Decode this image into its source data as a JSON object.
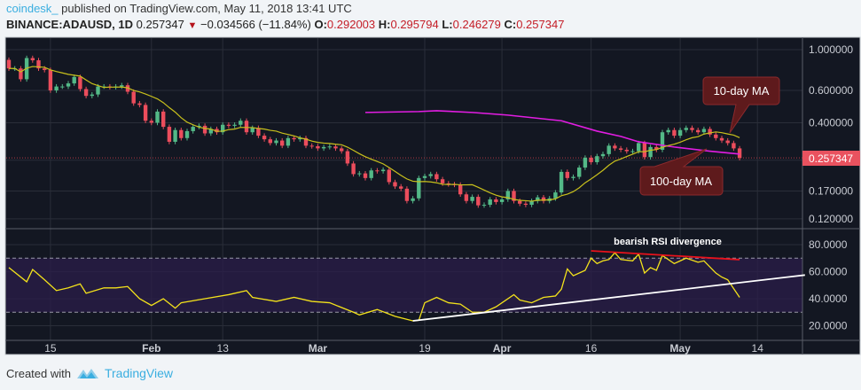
{
  "header": {
    "author": "coindesk_",
    "published": "published on TradingView.com, May 11, 2018 13:41 UTC",
    "symbol": "BINANCE:ADAUSD, 1D",
    "last": "0.257347",
    "change": "−0.034566 (−11.84%)",
    "o_label": "O:",
    "o": "0.292003",
    "h_label": "H:",
    "h": "0.295794",
    "l_label": "L:",
    "l": "0.246279",
    "c_label": "C:",
    "c": "0.257347",
    "direction_icon": "triangle-down-icon"
  },
  "footer": {
    "created_with": "Created with",
    "brand": "TradingView",
    "logo_icon": "tradingview-logo-icon"
  },
  "colors": {
    "up": "#53b987",
    "down": "#eb4d5c",
    "ma10": "#c8c01c",
    "ma100": "#e11de1",
    "rsi": "#f3e21b",
    "background": "#131722",
    "annotation": "#5e1a1c"
  },
  "chart_data": [
    {
      "type": "candlestick",
      "scale": "log",
      "date_range": [
        "2018-01-08",
        "2018-05-11"
      ],
      "first_open": 0.88,
      "closes": [
        0.79,
        0.79,
        0.69,
        0.9,
        0.875,
        0.79,
        0.775,
        0.6,
        0.63,
        0.63,
        0.655,
        0.71,
        0.61,
        0.56,
        0.57,
        0.63,
        0.63,
        0.625,
        0.63,
        0.64,
        0.59,
        0.51,
        0.5,
        0.41,
        0.4,
        0.46,
        0.38,
        0.315,
        0.365,
        0.33,
        0.36,
        0.38,
        0.385,
        0.35,
        0.37,
        0.355,
        0.39,
        0.385,
        0.39,
        0.41,
        0.355,
        0.375,
        0.34,
        0.325,
        0.31,
        0.32,
        0.3,
        0.33,
        0.325,
        0.33,
        0.3,
        0.298,
        0.29,
        0.295,
        0.297,
        0.29,
        0.28,
        0.24,
        0.21,
        0.212,
        0.2,
        0.22,
        0.218,
        0.222,
        0.19,
        0.18,
        0.175,
        0.15,
        0.155,
        0.2,
        0.205,
        0.21,
        0.197,
        0.187,
        0.185,
        0.184,
        0.163,
        0.15,
        0.158,
        0.142,
        0.143,
        0.153,
        0.148,
        0.153,
        0.17,
        0.15,
        0.145,
        0.143,
        0.15,
        0.157,
        0.15,
        0.155,
        0.167,
        0.216,
        0.2,
        0.203,
        0.228,
        0.258,
        0.244,
        0.263,
        0.27,
        0.3,
        0.29,
        0.285,
        0.28,
        0.28,
        0.31,
        0.26,
        0.295,
        0.285,
        0.355,
        0.365,
        0.34,
        0.365,
        0.375,
        0.365,
        0.355,
        0.37,
        0.345,
        0.33,
        0.32,
        0.31,
        0.29,
        0.257347
      ],
      "ma100": [
        [
          "2018-03-09",
          0.455
        ],
        [
          "2018-03-18",
          0.46
        ],
        [
          "2018-03-21",
          0.465
        ],
        [
          "2018-03-27",
          0.455
        ],
        [
          "2018-04-02",
          0.44
        ],
        [
          "2018-04-11",
          0.41
        ],
        [
          "2018-04-17",
          0.36
        ],
        [
          "2018-04-21",
          0.337
        ],
        [
          "2018-04-24",
          0.315
        ],
        [
          "2018-04-30",
          0.295
        ],
        [
          "2018-05-06",
          0.28
        ],
        [
          "2018-05-11",
          0.27
        ]
      ],
      "ma10_period": 10,
      "y_ticks": [
        "1.000000",
        "0.600000",
        "0.400000",
        "0.170000",
        "0.120000"
      ],
      "y_grid": [
        1.0,
        0.6,
        0.4,
        0.25,
        0.17,
        0.12
      ],
      "last_price_label": "0.257347",
      "annotations": [
        {
          "text": "10-day MA",
          "points_to": "ma10"
        },
        {
          "text": "100-day MA",
          "points_to": "ma100"
        }
      ]
    },
    {
      "type": "line",
      "ylim": [
        9,
        92
      ],
      "band": [
        30,
        70
      ],
      "y_ticks": [
        "80.0000",
        "60.0000",
        "40.0000",
        "20.0000"
      ],
      "y_tick_values": [
        80,
        60,
        40,
        20
      ],
      "rsi": [
        [
          "2018-01-08",
          63
        ],
        [
          "2018-01-11",
          52.5
        ],
        [
          "2018-01-12",
          61.6
        ],
        [
          "2018-01-14",
          54
        ],
        [
          "2018-01-16",
          46
        ],
        [
          "2018-01-18",
          48
        ],
        [
          "2018-01-20",
          51
        ],
        [
          "2018-01-21",
          44
        ],
        [
          "2018-01-24",
          48
        ],
        [
          "2018-01-26",
          48
        ],
        [
          "2018-01-28",
          49
        ],
        [
          "2018-01-30",
          40
        ],
        [
          "2018-02-01",
          35
        ],
        [
          "2018-02-03",
          40
        ],
        [
          "2018-02-05",
          33
        ],
        [
          "2018-02-06",
          37
        ],
        [
          "2018-02-10",
          40
        ],
        [
          "2018-02-14",
          43
        ],
        [
          "2018-02-17",
          46
        ],
        [
          "2018-02-18",
          41
        ],
        [
          "2018-02-22",
          38
        ],
        [
          "2018-02-25",
          41
        ],
        [
          "2018-02-28",
          38
        ],
        [
          "2018-03-03",
          37
        ],
        [
          "2018-03-07",
          30
        ],
        [
          "2018-03-08",
          28
        ],
        [
          "2018-03-11",
          32
        ],
        [
          "2018-03-14",
          27
        ],
        [
          "2018-03-17",
          23.6
        ],
        [
          "2018-03-18",
          24
        ],
        [
          "2018-03-19",
          37
        ],
        [
          "2018-03-21",
          41
        ],
        [
          "2018-03-23",
          37
        ],
        [
          "2018-03-25",
          36
        ],
        [
          "2018-03-27",
          30
        ],
        [
          "2018-03-29",
          30
        ],
        [
          "2018-03-31",
          34
        ],
        [
          "2018-04-03",
          43
        ],
        [
          "2018-04-04",
          39
        ],
        [
          "2018-04-06",
          37
        ],
        [
          "2018-04-08",
          41
        ],
        [
          "2018-04-10",
          42
        ],
        [
          "2018-04-11",
          47
        ],
        [
          "2018-04-12",
          62
        ],
        [
          "2018-04-13",
          57
        ],
        [
          "2018-04-15",
          61
        ],
        [
          "2018-04-16",
          70
        ],
        [
          "2018-04-17",
          66
        ],
        [
          "2018-04-18",
          68
        ],
        [
          "2018-04-19",
          69
        ],
        [
          "2018-04-20",
          74
        ],
        [
          "2018-04-21",
          69
        ],
        [
          "2018-04-23",
          68
        ],
        [
          "2018-04-24",
          73
        ],
        [
          "2018-04-25",
          59
        ],
        [
          "2018-04-26",
          63
        ],
        [
          "2018-04-27",
          61
        ],
        [
          "2018-04-28",
          72
        ],
        [
          "2018-04-30",
          66
        ],
        [
          "2018-05-02",
          70
        ],
        [
          "2018-05-04",
          67
        ],
        [
          "2018-05-05",
          68
        ],
        [
          "2018-05-07",
          59
        ],
        [
          "2018-05-08",
          56
        ],
        [
          "2018-05-09",
          54
        ],
        [
          "2018-05-11",
          41
        ]
      ],
      "trendlines": [
        {
          "color": "#ffffff",
          "from": [
            "2018-03-17",
            23.6
          ],
          "to": [
            "2018-05-22",
            57.5
          ]
        },
        {
          "color": "#e8121c",
          "from": [
            "2018-04-16",
            75.4
          ],
          "to": [
            "2018-05-11",
            68.9
          ]
        }
      ],
      "annotation": "bearish RSI divergence"
    }
  ],
  "x_ticks": [
    {
      "label": "15",
      "date": "2018-01-15",
      "bold": false
    },
    {
      "label": "Feb",
      "date": "2018-02-01",
      "bold": true
    },
    {
      "label": "13",
      "date": "2018-02-13",
      "bold": false
    },
    {
      "label": "Mar",
      "date": "2018-03-01",
      "bold": true
    },
    {
      "label": "19",
      "date": "2018-03-19",
      "bold": false
    },
    {
      "label": "Apr",
      "date": "2018-04-01",
      "bold": true
    },
    {
      "label": "16",
      "date": "2018-04-16",
      "bold": false
    },
    {
      "label": "May",
      "date": "2018-05-01",
      "bold": true
    },
    {
      "label": "14",
      "date": "2018-05-14",
      "bold": false
    }
  ]
}
